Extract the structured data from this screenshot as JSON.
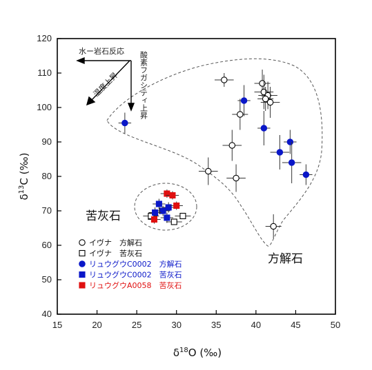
{
  "chart_data": {
    "type": "scatter",
    "xlabel": "δ18O (‰)",
    "ylabel": "δ13C (‰)",
    "xlim": [
      15,
      50
    ],
    "ylim": [
      40,
      120
    ],
    "xticks": [
      15,
      20,
      25,
      30,
      35,
      40,
      45,
      50
    ],
    "yticks": [
      40,
      50,
      60,
      70,
      80,
      90,
      100,
      110,
      120
    ],
    "x_axis_label": {
      "main": "δ",
      "sup": "18",
      "rest": "O (‰)"
    },
    "y_axis_label": {
      "main": "δ",
      "sup": "13",
      "rest": "C (‰)"
    },
    "grid": false,
    "annotations": {
      "water_rock": "水ー岩石反応",
      "temperature": "温度上昇",
      "fugacity": "酸素フガシティ上昇",
      "dolomite_region": "苦灰石",
      "calcite_region": "方解石"
    },
    "legend": [
      {
        "label": "イヴナ　方解石",
        "marker": "circle-open",
        "color": "#000000"
      },
      {
        "label": "イヴナ　苦灰石",
        "marker": "square-open",
        "color": "#000000"
      },
      {
        "label": "リュウグウC0002　方解石",
        "marker": "circle-filled",
        "color": "#0a17c8"
      },
      {
        "label": "リュウグウC0002　苦灰石",
        "marker": "square-filled",
        "color": "#0a17c8"
      },
      {
        "label": "リュウグウA0058　苦灰石",
        "marker": "square-filled",
        "color": "#e01010"
      }
    ],
    "series": [
      {
        "name": "イヴナ　方解石",
        "marker": "circle-open",
        "color": "#000000",
        "points": [
          {
            "x": 36.0,
            "y": 108.0,
            "ex": 1.2,
            "ey": 2.0
          },
          {
            "x": 40.8,
            "y": 107.0,
            "ex": 1.0,
            "ey": 4.0
          },
          {
            "x": 41.0,
            "y": 104.5,
            "ex": 1.2,
            "ey": 5.0
          },
          {
            "x": 41.5,
            "y": 103.5,
            "ex": 1.2,
            "ey": 4.0
          },
          {
            "x": 41.2,
            "y": 102.5,
            "ex": 1.0,
            "ey": 3.5
          },
          {
            "x": 41.8,
            "y": 101.5,
            "ex": 1.2,
            "ey": 4.5
          },
          {
            "x": 38.0,
            "y": 98.0,
            "ex": 1.0,
            "ey": 4.5
          },
          {
            "x": 37.0,
            "y": 89.0,
            "ex": 1.2,
            "ey": 4.5
          },
          {
            "x": 34.0,
            "y": 81.5,
            "ex": 1.2,
            "ey": 4.0
          },
          {
            "x": 37.5,
            "y": 79.5,
            "ex": 1.2,
            "ey": 4.0
          },
          {
            "x": 42.2,
            "y": 65.5,
            "ex": 1.0,
            "ey": 3.5
          }
        ]
      },
      {
        "name": "イヴナ　苦灰石",
        "marker": "square-open",
        "color": "#000000",
        "points": [
          {
            "x": 26.8,
            "y": 68.5,
            "ex": 1.0,
            "ey": 0.8
          },
          {
            "x": 29.7,
            "y": 66.8,
            "ex": 1.0,
            "ey": 0.8
          },
          {
            "x": 30.8,
            "y": 68.5,
            "ex": 1.0,
            "ey": 0.8
          },
          {
            "x": 28.2,
            "y": 70.0,
            "ex": 1.0,
            "ey": 0.8
          }
        ]
      },
      {
        "name": "リュウグウC0002　方解石",
        "marker": "circle-filled",
        "color": "#0a17c8",
        "points": [
          {
            "x": 23.5,
            "y": 95.5,
            "ex": 0.8,
            "ey": 3.0
          },
          {
            "x": 38.5,
            "y": 102.0,
            "ex": 0.8,
            "ey": 4.5
          },
          {
            "x": 41.0,
            "y": 94.0,
            "ex": 0.8,
            "ey": 5.0
          },
          {
            "x": 43.0,
            "y": 87.0,
            "ex": 1.2,
            "ey": 5.0
          },
          {
            "x": 44.3,
            "y": 90.0,
            "ex": 0.8,
            "ey": 3.5
          },
          {
            "x": 44.5,
            "y": 84.0,
            "ex": 1.2,
            "ey": 6.0
          },
          {
            "x": 46.3,
            "y": 80.5,
            "ex": 0.8,
            "ey": 3.0
          }
        ]
      },
      {
        "name": "リュウグウC0002　苦灰石",
        "marker": "square-filled",
        "color": "#0a17c8",
        "points": [
          {
            "x": 27.8,
            "y": 72.0,
            "ex": 0.8,
            "ey": 1.5
          },
          {
            "x": 28.3,
            "y": 70.0,
            "ex": 0.8,
            "ey": 1.5
          },
          {
            "x": 28.8,
            "y": 68.0,
            "ex": 0.8,
            "ey": 1.5
          },
          {
            "x": 27.3,
            "y": 69.5,
            "ex": 0.8,
            "ey": 1.5
          },
          {
            "x": 29.0,
            "y": 71.0,
            "ex": 0.8,
            "ey": 1.5
          }
        ]
      },
      {
        "name": "リュウグウA0058　苦灰石",
        "marker": "square-filled",
        "color": "#e01010",
        "points": [
          {
            "x": 28.8,
            "y": 75.0,
            "ex": 0.8,
            "ey": 1.2
          },
          {
            "x": 29.5,
            "y": 74.5,
            "ex": 0.8,
            "ey": 1.2
          },
          {
            "x": 30.0,
            "y": 71.5,
            "ex": 0.8,
            "ey": 1.2
          },
          {
            "x": 27.2,
            "y": 67.5,
            "ex": 0.8,
            "ey": 1.2
          }
        ]
      }
    ]
  }
}
